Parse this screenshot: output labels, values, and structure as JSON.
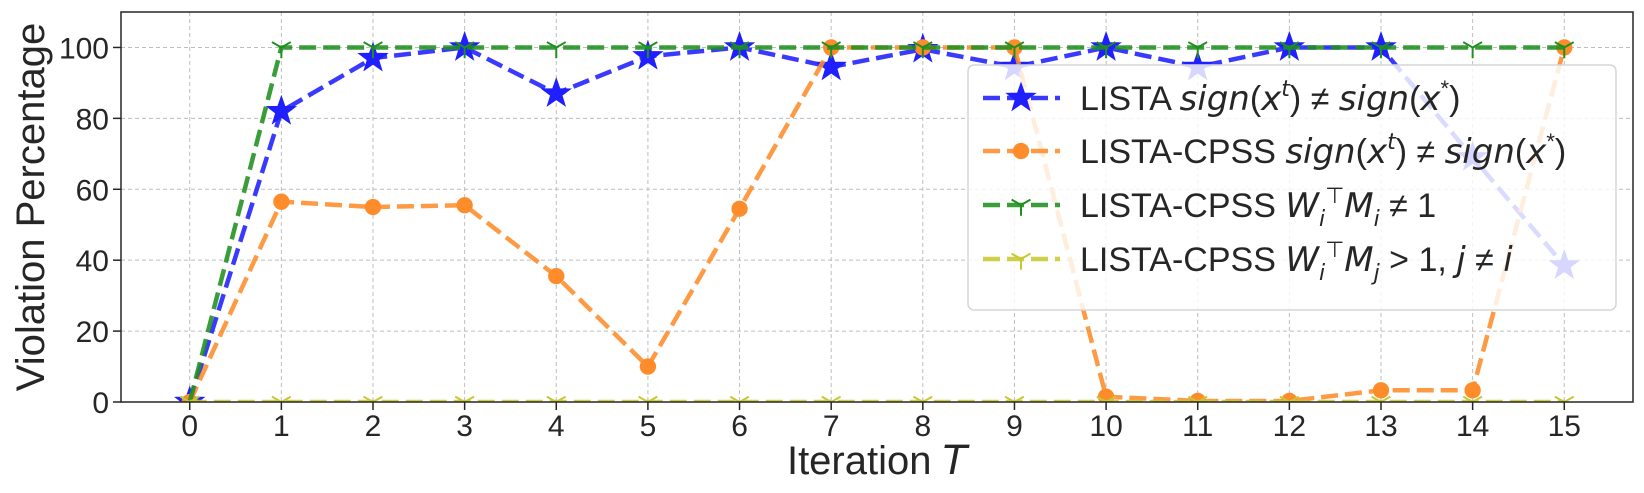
{
  "chart_data": {
    "type": "line",
    "title": "",
    "xlabel": "Iteration",
    "xlabel_var": "T",
    "ylabel": "Violation Percentage",
    "x": [
      0,
      1,
      2,
      3,
      4,
      5,
      6,
      7,
      8,
      9,
      10,
      11,
      12,
      13,
      14,
      15
    ],
    "xlim": [
      -0.75,
      15.75
    ],
    "ylim": [
      0,
      110
    ],
    "yticks": [
      0,
      20,
      40,
      60,
      80,
      100
    ],
    "grid": true,
    "legend_position": "upper-right",
    "series": [
      {
        "name": "LISTA sign(x^t) ≠ sign(x^*)",
        "legend_parts": [
          {
            "t": "LISTA ",
            "style": "normal"
          },
          {
            "t": "sign",
            "style": "math"
          },
          {
            "t": "(",
            "style": "normal"
          },
          {
            "t": "x",
            "style": "math"
          },
          {
            "t": "t",
            "style": "sup-math"
          },
          {
            "t": ") ≠ ",
            "style": "normal"
          },
          {
            "t": "sign",
            "style": "math"
          },
          {
            "t": "(",
            "style": "normal"
          },
          {
            "t": "x",
            "style": "math"
          },
          {
            "t": "*",
            "style": "sup"
          },
          {
            "t": ")",
            "style": "normal"
          }
        ],
        "color": "#1f1fff",
        "marker": "star",
        "values": [
          0,
          82,
          97,
          100,
          87,
          97.5,
          100,
          94.5,
          99.5,
          94.5,
          100,
          94.5,
          100,
          100,
          69,
          38.5
        ]
      },
      {
        "name": "LISTA-CPSS sign(x^t) ≠ sign(x^*)",
        "legend_parts": [
          {
            "t": "LISTA-CPSS ",
            "style": "normal"
          },
          {
            "t": "sign",
            "style": "math"
          },
          {
            "t": "(",
            "style": "normal"
          },
          {
            "t": "x",
            "style": "math"
          },
          {
            "t": "t",
            "style": "sup-math"
          },
          {
            "t": ") ≠ ",
            "style": "normal"
          },
          {
            "t": "sign",
            "style": "math"
          },
          {
            "t": "(",
            "style": "normal"
          },
          {
            "t": "x",
            "style": "math"
          },
          {
            "t": "*",
            "style": "sup"
          },
          {
            "t": ")",
            "style": "normal"
          }
        ],
        "color": "#ff8c2a",
        "marker": "circle",
        "values": [
          0,
          56.5,
          55,
          55.5,
          35.5,
          10,
          54.5,
          100,
          100,
          100,
          1.5,
          0.3,
          0.3,
          3.3,
          3.3,
          100
        ]
      },
      {
        "name": "LISTA-CPSS W_i^T M_i ≠ 1",
        "legend_parts": [
          {
            "t": "LISTA-CPSS ",
            "style": "normal"
          },
          {
            "t": "W",
            "style": "math"
          },
          {
            "t": "i",
            "style": "sub-math"
          },
          {
            "t": "⊤",
            "style": "sup"
          },
          {
            "t": "M",
            "style": "math"
          },
          {
            "t": "i",
            "style": "sub-math"
          },
          {
            "t": " ≠ 1",
            "style": "normal"
          }
        ],
        "color": "#1f8f1f",
        "marker": "tri",
        "values": [
          0,
          100,
          100,
          100,
          100,
          100,
          100,
          100,
          100,
          100,
          100,
          100,
          100,
          100,
          100,
          100
        ]
      },
      {
        "name": "LISTA-CPSS W_i^T M_j > 1, j ≠ i",
        "legend_parts": [
          {
            "t": "LISTA-CPSS ",
            "style": "normal"
          },
          {
            "t": "W",
            "style": "math"
          },
          {
            "t": "i",
            "style": "sub-math"
          },
          {
            "t": "⊤",
            "style": "sup"
          },
          {
            "t": "M",
            "style": "math"
          },
          {
            "t": "j",
            "style": "sub-math"
          },
          {
            "t": " > 1, ",
            "style": "normal"
          },
          {
            "t": "j",
            "style": "math"
          },
          {
            "t": " ≠ ",
            "style": "normal"
          },
          {
            "t": "i",
            "style": "math"
          }
        ],
        "color": "#c8c832",
        "marker": "tri",
        "values": [
          0,
          0,
          0,
          0,
          0,
          0,
          0,
          0,
          0,
          0,
          0,
          0,
          0,
          0,
          0,
          0
        ]
      }
    ]
  }
}
